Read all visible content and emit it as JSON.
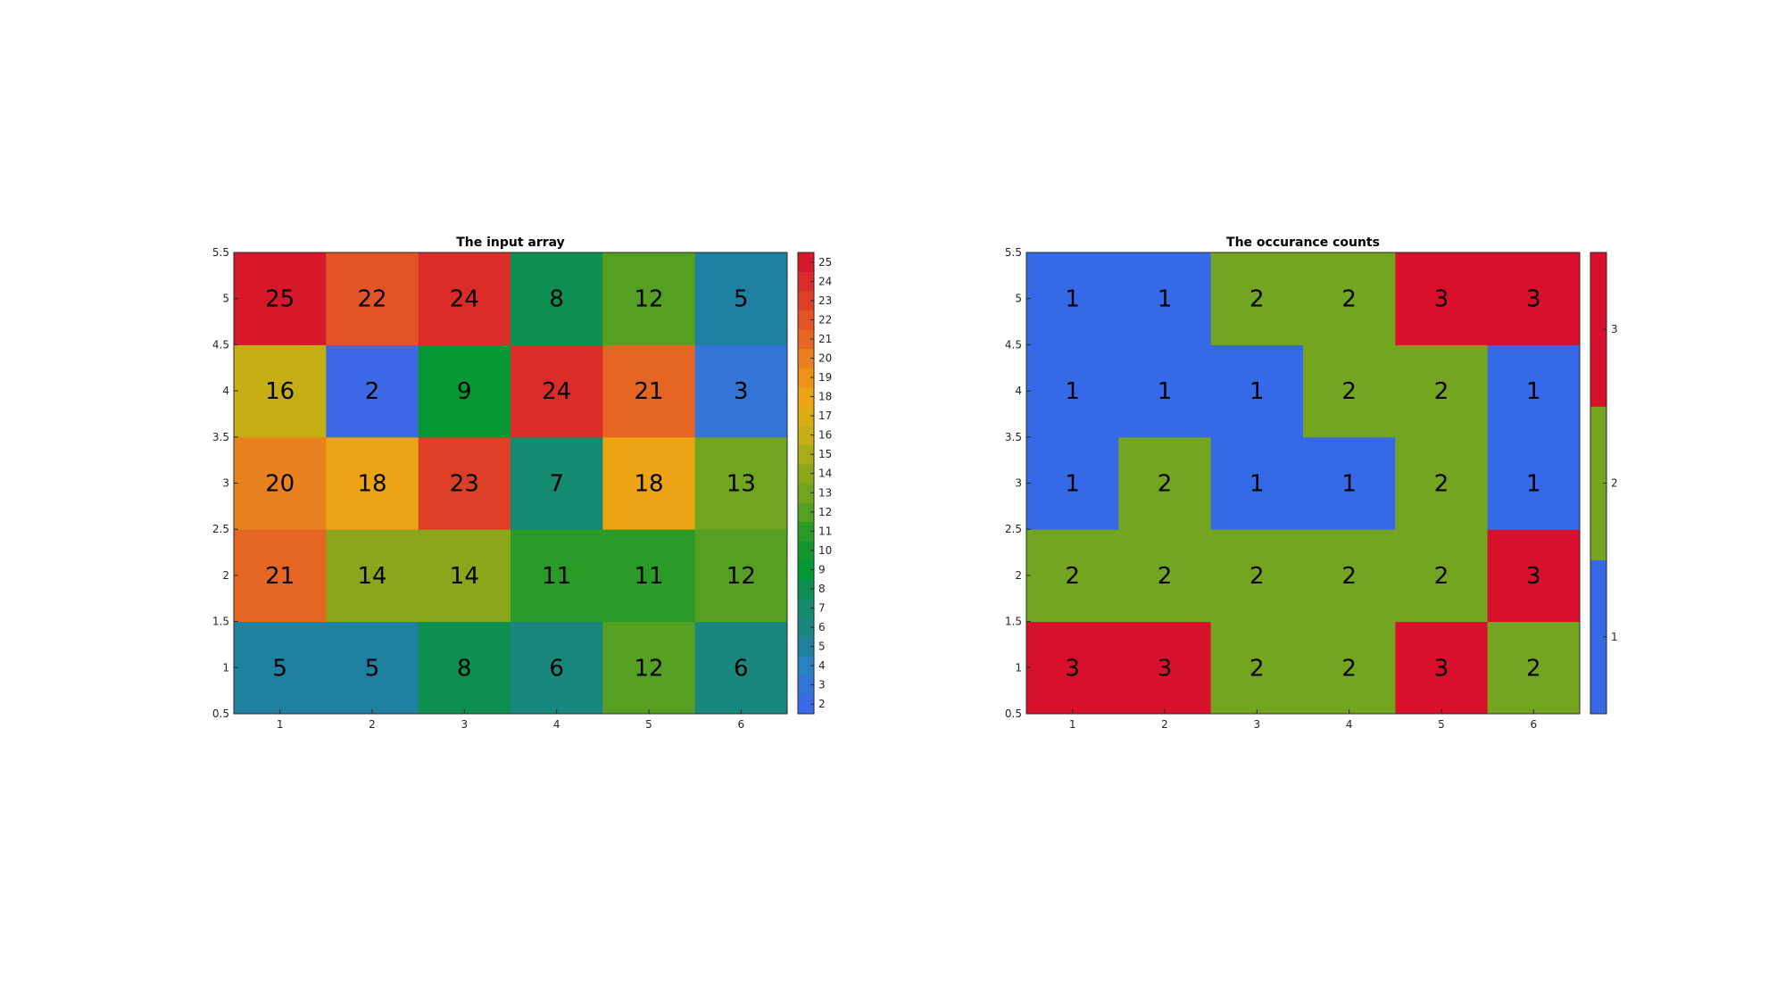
{
  "chart_data": [
    {
      "type": "heatmap",
      "title": "The input array",
      "x": [
        1,
        2,
        3,
        4,
        5,
        6
      ],
      "y": [
        1,
        2,
        3,
        4,
        5
      ],
      "xlim": [
        0.5,
        6.5
      ],
      "ylim": [
        0.5,
        5.5
      ],
      "x_ticks": [
        "1",
        "2",
        "3",
        "4",
        "5",
        "6"
      ],
      "y_ticks": [
        "0.5",
        "1",
        "1.5",
        "2",
        "2.5",
        "3",
        "3.5",
        "4",
        "4.5",
        "5",
        "5.5"
      ],
      "values": [
        [
          5,
          5,
          8,
          6,
          12,
          6
        ],
        [
          21,
          14,
          14,
          11,
          11,
          12
        ],
        [
          20,
          18,
          23,
          7,
          18,
          13
        ],
        [
          16,
          2,
          9,
          24,
          21,
          3
        ],
        [
          25,
          22,
          24,
          8,
          12,
          5
        ]
      ],
      "colorbar": {
        "limits": [
          1.5,
          25.5
        ],
        "ticks": [
          "2",
          "3",
          "4",
          "5",
          "6",
          "7",
          "8",
          "9",
          "10",
          "11",
          "12",
          "13",
          "14",
          "15",
          "16",
          "17",
          "18",
          "19",
          "20",
          "21",
          "22",
          "23",
          "24",
          "25"
        ],
        "colors": {
          "2": "#3c6ae6",
          "3": "#3374d6",
          "4": "#2a80c0",
          "5": "#2080a0",
          "6": "#19877e",
          "7": "#148a6e",
          "8": "#0e8e50",
          "9": "#069735",
          "10": "#14962f",
          "11": "#2a9b26",
          "12": "#55a022",
          "13": "#72a51f",
          "14": "#8ba61b",
          "15": "#a8ac17",
          "16": "#c4ae14",
          "17": "#dcad12",
          "18": "#eca414",
          "19": "#ec9317",
          "20": "#e98120",
          "21": "#e46622",
          "22": "#e35426",
          "23": "#de3f27",
          "24": "#da2c29",
          "25": "#d7182a"
        }
      }
    },
    {
      "type": "heatmap",
      "title": "The occurance counts",
      "x": [
        1,
        2,
        3,
        4,
        5,
        6
      ],
      "y": [
        1,
        2,
        3,
        4,
        5
      ],
      "xlim": [
        0.5,
        6.5
      ],
      "ylim": [
        0.5,
        5.5
      ],
      "x_ticks": [
        "1",
        "2",
        "3",
        "4",
        "5",
        "6"
      ],
      "y_ticks": [
        "0.5",
        "1",
        "1.5",
        "2",
        "2.5",
        "3",
        "3.5",
        "4",
        "4.5",
        "5",
        "5.5"
      ],
      "values": [
        [
          3,
          3,
          2,
          2,
          3,
          2
        ],
        [
          2,
          2,
          2,
          2,
          2,
          3
        ],
        [
          1,
          2,
          1,
          1,
          2,
          1
        ],
        [
          1,
          1,
          1,
          2,
          2,
          1
        ],
        [
          1,
          1,
          2,
          2,
          3,
          3
        ]
      ],
      "colorbar": {
        "limits": [
          0.5,
          3.5
        ],
        "ticks": [
          "1",
          "2",
          "3"
        ],
        "colors": {
          "1": "#3569e7",
          "2": "#74a521",
          "3": "#d8102b"
        }
      }
    }
  ]
}
